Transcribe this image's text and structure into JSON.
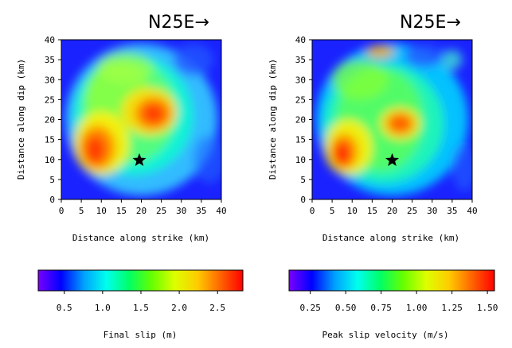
{
  "panels": [
    {
      "title": "N25E→",
      "xlabel": "Distance along strike (km)",
      "ylabel": "Distance along dip (km)",
      "xlim": [
        0,
        40
      ],
      "ylim": [
        0,
        40
      ],
      "xticks": [
        "0",
        "5",
        "10",
        "15",
        "20",
        "25",
        "30",
        "35",
        "40"
      ],
      "yticks": [
        "0",
        "5",
        "10",
        "15",
        "20",
        "25",
        "30",
        "35",
        "40"
      ],
      "hypocenter": {
        "x": 19.5,
        "y": 9.8
      },
      "blobs": [
        {
          "x": 20,
          "y": 20,
          "rx": 19,
          "ry": 19,
          "c": "#33ccff",
          "o": 0.9
        },
        {
          "x": 18,
          "y": 21,
          "rx": 15,
          "ry": 15,
          "c": "#00ffcc",
          "o": 0.8
        },
        {
          "x": 17,
          "y": 22,
          "rx": 12,
          "ry": 13,
          "c": "#66ff66",
          "o": 0.8
        },
        {
          "x": 14,
          "y": 26,
          "rx": 8,
          "ry": 9,
          "c": "#99ff33",
          "o": 0.7
        },
        {
          "x": 10,
          "y": 14,
          "rx": 7,
          "ry": 8,
          "c": "#ffee00",
          "o": 0.9
        },
        {
          "x": 9,
          "y": 13,
          "rx": 4.5,
          "ry": 5.5,
          "c": "#ff8800",
          "o": 0.95
        },
        {
          "x": 8.5,
          "y": 12.5,
          "rx": 2.5,
          "ry": 3.5,
          "c": "#ff3300",
          "o": 0.9
        },
        {
          "x": 22,
          "y": 22,
          "rx": 7,
          "ry": 6,
          "c": "#ffdd00",
          "o": 0.9
        },
        {
          "x": 23,
          "y": 21.5,
          "rx": 4.5,
          "ry": 4,
          "c": "#ff7700",
          "o": 0.95
        },
        {
          "x": 23,
          "y": 21.5,
          "rx": 2.5,
          "ry": 2.2,
          "c": "#ff3300",
          "o": 0.9
        },
        {
          "x": 16,
          "y": 33,
          "rx": 7,
          "ry": 4,
          "c": "#aaff44",
          "o": 0.6
        },
        {
          "x": 33,
          "y": 35,
          "rx": 5,
          "ry": 4,
          "c": "#2255ff",
          "o": 0.8
        },
        {
          "x": 37,
          "y": 10,
          "rx": 4,
          "ry": 6,
          "c": "#2266ff",
          "o": 0.6
        }
      ]
    },
    {
      "title": "N25E→",
      "xlabel": "Distance along strike (km)",
      "ylabel": "Distance along dip (km)",
      "xlim": [
        0,
        40
      ],
      "ylim": [
        0,
        40
      ],
      "xticks": [
        "0",
        "5",
        "10",
        "15",
        "20",
        "25",
        "30",
        "35",
        "40"
      ],
      "yticks": [
        "0",
        "5",
        "10",
        "15",
        "20",
        "25",
        "30",
        "35",
        "40"
      ],
      "hypocenter": {
        "x": 20,
        "y": 9.8
      },
      "blobs": [
        {
          "x": 20,
          "y": 20,
          "rx": 19,
          "ry": 19,
          "c": "#00ddff",
          "o": 0.85
        },
        {
          "x": 18,
          "y": 19,
          "rx": 15,
          "ry": 15,
          "c": "#22ffaa",
          "o": 0.8
        },
        {
          "x": 17,
          "y": 20,
          "rx": 11,
          "ry": 13,
          "c": "#66ff44",
          "o": 0.7
        },
        {
          "x": 12,
          "y": 30,
          "rx": 7,
          "ry": 5,
          "c": "#88ff33",
          "o": 0.7
        },
        {
          "x": 9,
          "y": 13,
          "rx": 6,
          "ry": 7,
          "c": "#ffee00",
          "o": 0.9
        },
        {
          "x": 8,
          "y": 12,
          "rx": 3.5,
          "ry": 4.5,
          "c": "#ff8800",
          "o": 0.9
        },
        {
          "x": 7.5,
          "y": 11.5,
          "rx": 2.2,
          "ry": 3,
          "c": "#ff2200",
          "o": 0.85
        },
        {
          "x": 22,
          "y": 19,
          "rx": 5,
          "ry": 4,
          "c": "#ffdd00",
          "o": 0.9
        },
        {
          "x": 22,
          "y": 19,
          "rx": 3.2,
          "ry": 2.6,
          "c": "#ff5500",
          "o": 0.9
        },
        {
          "x": 17,
          "y": 37,
          "rx": 3.5,
          "ry": 1.6,
          "c": "#ffaa00",
          "o": 0.85
        },
        {
          "x": 28,
          "y": 36,
          "rx": 5,
          "ry": 3,
          "c": "#2255ff",
          "o": 0.8
        },
        {
          "x": 35,
          "y": 35,
          "rx": 2.5,
          "ry": 2.5,
          "c": "#44ffcc",
          "o": 0.7
        },
        {
          "x": 38,
          "y": 8,
          "rx": 3,
          "ry": 6,
          "c": "#2266ff",
          "o": 0.6
        }
      ]
    }
  ],
  "colorbars": [
    {
      "label": "Final slip (m)",
      "ticks": [
        "0.5",
        "1.0",
        "1.5",
        "2.0",
        "2.5"
      ],
      "tick_values": [
        0.5,
        1.0,
        1.5,
        2.0,
        2.5
      ],
      "range": [
        0.16,
        2.83
      ]
    },
    {
      "label": "Peak slip velocity (m/s)",
      "ticks": [
        "0.25",
        "0.50",
        "0.75",
        "1.00",
        "1.25",
        "1.50"
      ],
      "tick_values": [
        0.25,
        0.5,
        0.75,
        1.0,
        1.25,
        1.5
      ],
      "range": [
        0.1,
        1.55
      ]
    }
  ],
  "colormap": [
    "#7a00ff",
    "#0000ff",
    "#00a0ff",
    "#00ffee",
    "#00ff66",
    "#66ff00",
    "#ddff00",
    "#ffcc00",
    "#ff6600",
    "#ff0000"
  ],
  "chart_data": [
    {
      "type": "heatmap",
      "title": "N25E→",
      "xlabel": "Distance along strike (km)",
      "ylabel": "Distance along dip (km)",
      "xlim": [
        0,
        40
      ],
      "ylim": [
        0,
        40
      ],
      "colorbar_label": "Final slip (m)",
      "colorbar_range": [
        0.16,
        2.83
      ],
      "hypocenter": [
        19.5,
        9.8
      ]
    },
    {
      "type": "heatmap",
      "title": "N25E→",
      "xlabel": "Distance along strike (km)",
      "ylabel": "Distance along dip (km)",
      "xlim": [
        0,
        40
      ],
      "ylim": [
        0,
        40
      ],
      "colorbar_label": "Peak slip velocity (m/s)",
      "colorbar_range": [
        0.1,
        1.55
      ],
      "hypocenter": [
        20,
        9.8
      ]
    }
  ]
}
